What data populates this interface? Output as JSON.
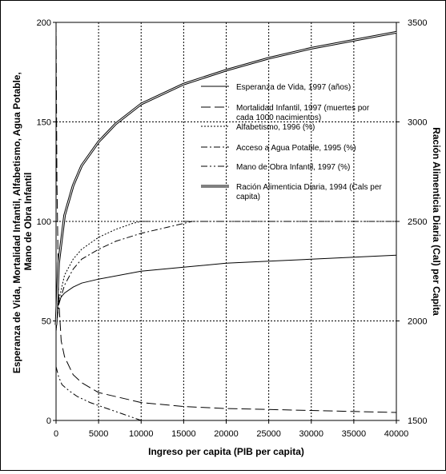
{
  "chart_data": {
    "type": "line",
    "title": "",
    "xlabel": "Ingreso per capita (PIB per capita)",
    "ylabel_left_lines": [
      "Esperanza de Vida, Mortalidad Infantil, Alfabetismo, Agua Potable,",
      "Mano de Obra Infantil"
    ],
    "ylabel_right": "Ración Alimenticia Diaria (Cal) per Capita",
    "xlim": [
      0,
      40000
    ],
    "ylim_left": [
      0,
      200
    ],
    "ylim_right": [
      1500,
      3500
    ],
    "x_ticks": [
      0,
      5000,
      10000,
      15000,
      20000,
      25000,
      30000,
      35000,
      40000
    ],
    "y_ticks_left": [
      0,
      50,
      100,
      150,
      200
    ],
    "y_ticks_right": [
      1500,
      2000,
      2500,
      3000,
      3500
    ],
    "grid": true,
    "legend_position": "center-right inside plot",
    "series": [
      {
        "name": "Esperanza de Vida, 1997 (años)",
        "legend_lines": [
          "Esperanza de Vida, 1997 (años)"
        ],
        "axis": "left",
        "style": "solid",
        "x": [
          0,
          100,
          300,
          600,
          1000,
          2000,
          3000,
          5000,
          10000,
          15000,
          20000,
          25000,
          30000,
          35000,
          40000
        ],
        "y": [
          52,
          56,
          59,
          62,
          64,
          67,
          69,
          71,
          75,
          77,
          79,
          80,
          81,
          82,
          83
        ]
      },
      {
        "name": "Mortalidad Infantil, 1997 (muertes por cada 1000 nacimientos)",
        "legend_lines": [
          "Mortalidad Infantil, 1997 (muertes por",
          "cada 1000 nacimientos)"
        ],
        "axis": "left",
        "style": "longdash",
        "x": [
          0,
          100,
          300,
          600,
          1000,
          2000,
          3000,
          5000,
          10000,
          15000,
          20000,
          25000,
          30000,
          35000,
          40000
        ],
        "y": [
          200,
          120,
          62,
          40,
          32,
          23,
          19,
          14,
          9,
          7,
          6,
          5.5,
          5,
          4.5,
          4
        ]
      },
      {
        "name": "Alfabetismo, 1996 (%)",
        "legend_lines": [
          "Alfabetismo, 1996 (%)"
        ],
        "axis": "left",
        "style": "dotted",
        "x": [
          0,
          300,
          1000,
          2000,
          3000,
          5000,
          7000,
          9000,
          10000,
          11000
        ],
        "y": [
          45,
          60,
          73,
          81,
          86,
          92,
          96,
          99,
          100,
          100
        ]
      },
      {
        "name": "Acceso a Agua Potable, 1995 (%)",
        "legend_lines": [
          "Acceso a Agua Potable, 1995 (%)"
        ],
        "axis": "left",
        "style": "dashdot",
        "x": [
          0,
          300,
          1000,
          2000,
          3000,
          5000,
          7000,
          10000,
          13000,
          15000,
          16000
        ],
        "y": [
          45,
          58,
          68,
          76,
          81,
          86,
          90,
          94,
          97,
          99,
          100
        ]
      },
      {
        "name": "Mano de Obra Infantil, 1997 (%)",
        "legend_lines": [
          "Mano de Obra Infantil, 1997 (%)"
        ],
        "axis": "left",
        "style": "dashdotdot",
        "x": [
          0,
          300,
          700,
          1500,
          2500,
          4000,
          6000,
          8000,
          10000,
          15000,
          20000,
          25000,
          30000,
          35000,
          40000
        ],
        "y": [
          27,
          22,
          18,
          15,
          12,
          9,
          6,
          3,
          0,
          100,
          100,
          100,
          100,
          100,
          100
        ],
        "note_values": "two segments: falling curve ending at 0 near 10000, and horizontal line at 100 from 15000 to 40000"
      },
      {
        "name": "Ración Alimenticia Diaria, 1994 (Cals per capita)",
        "legend_lines": [
          "Ración Alimenticia Diaria, 1994 (Cals per",
          "capita)"
        ],
        "axis": "right",
        "style": "double",
        "x": [
          0,
          300,
          1000,
          2000,
          3000,
          5000,
          7000,
          10000,
          15000,
          20000,
          25000,
          30000,
          35000,
          40000
        ],
        "y": [
          1980,
          2290,
          2530,
          2680,
          2780,
          2900,
          2990,
          3090,
          3190,
          3260,
          3320,
          3370,
          3410,
          3450
        ]
      }
    ]
  }
}
